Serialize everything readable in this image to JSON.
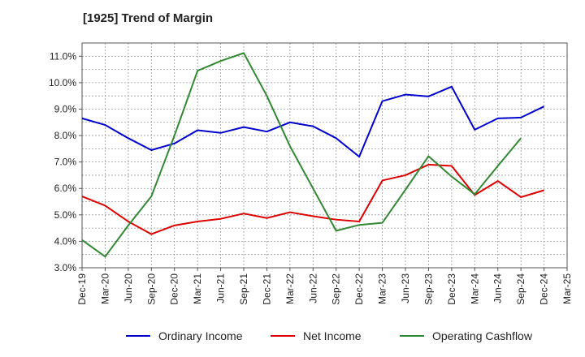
{
  "chart_data": {
    "type": "line",
    "title": "[1925]  Trend of Margin",
    "xlabel": "",
    "ylabel": "",
    "categories": [
      "Dec-19",
      "Mar-20",
      "Jun-20",
      "Sep-20",
      "Dec-20",
      "Mar-21",
      "Jun-21",
      "Sep-21",
      "Dec-21",
      "Mar-22",
      "Jun-22",
      "Sep-22",
      "Dec-22",
      "Mar-23",
      "Jun-23",
      "Sep-23",
      "Dec-23",
      "Mar-24",
      "Jun-24",
      "Sep-24",
      "Dec-24",
      "Mar-25"
    ],
    "ylim": [
      3.0,
      11.5
    ],
    "yticks": [
      3.0,
      4.0,
      5.0,
      6.0,
      7.0,
      8.0,
      9.0,
      10.0,
      11.0
    ],
    "ytick_labels": [
      "3.0%",
      "4.0%",
      "5.0%",
      "6.0%",
      "7.0%",
      "8.0%",
      "9.0%",
      "10.0%",
      "11.0%"
    ],
    "grid": true,
    "legend_position": "bottom",
    "series": [
      {
        "name": "Ordinary Income",
        "color": "#0000cc",
        "values": [
          8.65,
          8.4,
          7.9,
          7.45,
          7.7,
          8.2,
          8.1,
          8.32,
          8.15,
          8.5,
          8.35,
          7.9,
          7.2,
          9.3,
          9.55,
          9.48,
          9.85,
          8.22,
          8.65,
          8.68,
          9.1,
          null
        ]
      },
      {
        "name": "Net Income",
        "color": "#dd0000",
        "values": [
          5.7,
          5.35,
          4.75,
          4.27,
          4.6,
          4.75,
          4.85,
          5.05,
          4.88,
          5.1,
          4.95,
          4.82,
          4.75,
          6.3,
          6.5,
          6.9,
          6.85,
          5.75,
          6.28,
          5.67,
          5.93,
          null
        ]
      },
      {
        "name": "Operating Cashflow",
        "color": "#338833",
        "values": [
          4.05,
          3.42,
          4.6,
          5.7,
          8.0,
          10.45,
          10.82,
          11.12,
          9.5,
          7.6,
          6.0,
          4.4,
          4.62,
          4.7,
          5.95,
          7.22,
          6.45,
          5.78,
          6.85,
          7.9,
          null,
          null
        ]
      }
    ]
  }
}
